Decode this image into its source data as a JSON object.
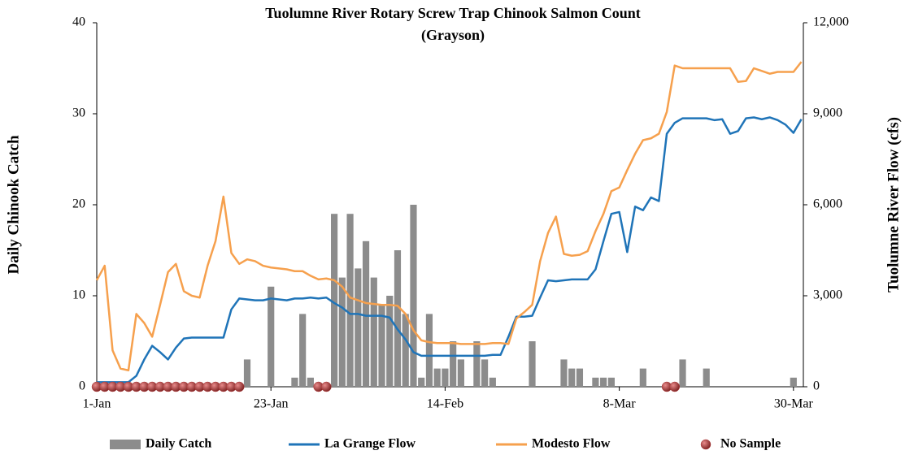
{
  "chart_data": {
    "type": "combo",
    "title": "Tuolumne River Rotary Screw Trap Chinook Salmon Count",
    "subtitle": "(Grayson)",
    "y_label": "Daily Chinook Catch",
    "y2_label": "Tuolumne River Flow (cfs)",
    "categories": [
      "1-Jan",
      null,
      null,
      null,
      null,
      null,
      null,
      null,
      null,
      null,
      null,
      null,
      null,
      null,
      null,
      null,
      null,
      null,
      null,
      null,
      null,
      null,
      "23-Jan",
      null,
      null,
      null,
      null,
      null,
      null,
      null,
      null,
      null,
      null,
      null,
      null,
      null,
      null,
      null,
      null,
      null,
      null,
      null,
      null,
      null,
      "14-Feb",
      null,
      null,
      null,
      null,
      null,
      null,
      null,
      null,
      null,
      null,
      null,
      null,
      null,
      null,
      null,
      null,
      null,
      null,
      null,
      null,
      null,
      "8-Mar",
      null,
      null,
      null,
      null,
      null,
      null,
      null,
      null,
      null,
      null,
      null,
      null,
      null,
      null,
      null,
      null,
      null,
      null,
      null,
      null,
      null,
      "30-Mar",
      null
    ],
    "ylim": [
      0,
      40
    ],
    "yticks": [
      0,
      10,
      20,
      30,
      40
    ],
    "y2lim": [
      0,
      12000
    ],
    "y2ticks": [
      0,
      {
        "value": 3000,
        "label": "3,000"
      },
      {
        "value": 6000,
        "label": "6,000"
      },
      {
        "value": 9000,
        "label": "9,000"
      },
      {
        "value": 12000,
        "label": "12,000"
      }
    ],
    "legend": "bottom",
    "series": [
      {
        "name": "Daily Catch",
        "type": "bar",
        "color": "#8c8c8c",
        "values": [
          null,
          null,
          null,
          null,
          null,
          null,
          null,
          null,
          null,
          null,
          null,
          null,
          null,
          null,
          null,
          null,
          null,
          null,
          null,
          3,
          0,
          0,
          11,
          0,
          0,
          1,
          8,
          1,
          null,
          null,
          19,
          12,
          19,
          13,
          16,
          12,
          9,
          10,
          15,
          8,
          20,
          1,
          8,
          2,
          2,
          5,
          3,
          0,
          5,
          3,
          1,
          0,
          0,
          0,
          0,
          5,
          0,
          0,
          0,
          3,
          2,
          2,
          0,
          1,
          1,
          1,
          0,
          0,
          0,
          2,
          0,
          0,
          null,
          null,
          3,
          0,
          0,
          2,
          0,
          0,
          0,
          0,
          0,
          0,
          0,
          0,
          0,
          0,
          1,
          0
        ]
      },
      {
        "name": "La Grange Flow",
        "type": "line",
        "axis": "y2",
        "color": "#1f74b8",
        "values": [
          150,
          150,
          150,
          150,
          150,
          360,
          900,
          1350,
          1140,
          900,
          1290,
          1590,
          1620,
          1620,
          1620,
          1620,
          1620,
          2550,
          2910,
          2880,
          2850,
          2850,
          2910,
          2880,
          2850,
          2910,
          2910,
          2940,
          2910,
          2940,
          2760,
          2610,
          2400,
          2400,
          2340,
          2340,
          2340,
          2280,
          1890,
          1560,
          1140,
          1020,
          1020,
          1020,
          1020,
          1020,
          1020,
          1020,
          1020,
          1020,
          1050,
          1050,
          1650,
          2310,
          2310,
          2340,
          2940,
          3510,
          3480,
          3510,
          3540,
          3540,
          3540,
          3870,
          4800,
          5700,
          5760,
          4440,
          5940,
          5820,
          6240,
          6120,
          8340,
          8700,
          8850,
          8850,
          8850,
          8850,
          8790,
          8820,
          8340,
          8430,
          8850,
          8880,
          8820,
          8880,
          8790,
          8640,
          8370,
          8820
        ]
      },
      {
        "name": "Modesto Flow",
        "type": "line",
        "axis": "y2",
        "color": "#f6a04d",
        "values": [
          3510,
          3990,
          1200,
          600,
          540,
          2400,
          2100,
          1650,
          2700,
          3780,
          4050,
          3150,
          3000,
          2940,
          3990,
          4800,
          6270,
          4410,
          4050,
          4200,
          4140,
          3990,
          3930,
          3900,
          3870,
          3810,
          3810,
          3660,
          3540,
          3570,
          3510,
          3300,
          2940,
          2850,
          2760,
          2730,
          2700,
          2700,
          2670,
          2400,
          1860,
          1530,
          1470,
          1440,
          1440,
          1440,
          1410,
          1410,
          1410,
          1410,
          1440,
          1440,
          1410,
          2250,
          2460,
          2700,
          4140,
          5070,
          5610,
          4380,
          4320,
          4350,
          4470,
          5130,
          5700,
          6450,
          6570,
          7140,
          7680,
          8130,
          8190,
          8340,
          9060,
          10590,
          10500,
          10500,
          10500,
          10500,
          10500,
          10500,
          10500,
          10050,
          10080,
          10500,
          10410,
          10320,
          10380,
          10380,
          10380,
          10710
        ]
      },
      {
        "name": "No Sample",
        "type": "scatter",
        "color": "#b23a3a",
        "values": [
          0,
          0,
          0,
          0,
          0,
          0,
          0,
          0,
          0,
          0,
          0,
          0,
          0,
          0,
          0,
          0,
          0,
          0,
          0,
          null,
          null,
          null,
          null,
          null,
          null,
          null,
          null,
          null,
          0,
          0,
          null,
          null,
          null,
          null,
          null,
          null,
          null,
          null,
          null,
          null,
          null,
          null,
          null,
          null,
          null,
          null,
          null,
          null,
          null,
          null,
          null,
          null,
          null,
          null,
          null,
          null,
          null,
          null,
          null,
          null,
          null,
          null,
          null,
          null,
          null,
          null,
          null,
          null,
          null,
          null,
          null,
          null,
          0,
          0,
          null,
          null,
          null,
          null,
          null,
          null,
          null,
          null,
          null,
          null,
          null,
          null,
          null,
          null,
          null,
          null
        ]
      }
    ]
  }
}
